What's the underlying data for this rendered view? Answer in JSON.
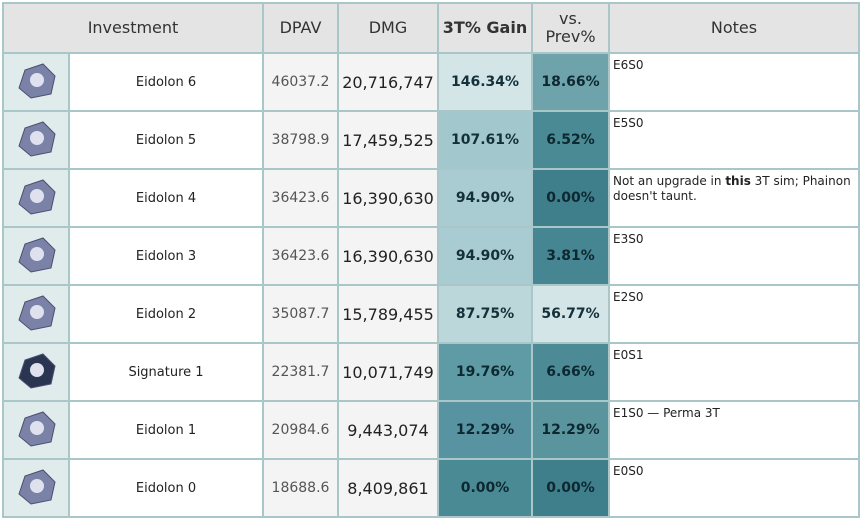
{
  "table": {
    "header": [
      "Investment",
      "DPAV",
      "DMG",
      "3T% Gain",
      "vs.\nPrev%",
      "Notes"
    ],
    "rows": [
      {
        "investment": "Eidolon 6",
        "dpav": "46037.2",
        "dmg": "20,716,747",
        "gain": "146.34%",
        "prev": "18.66%",
        "notes": [
          "E6S0"
        ]
      },
      {
        "investment": "Eidolon 5",
        "dpav": "38798.9",
        "dmg": "17,459,525",
        "gain": "107.61%",
        "prev": "6.52%",
        "notes": [
          "E5S0"
        ]
      },
      {
        "investment": "Eidolon 4",
        "dpav": "36423.6",
        "dmg": "16,390,630",
        "gain": "94.90%",
        "prev": "0.00%",
        "notes": [
          "Not an upgrade in ",
          "this",
          " 3T sim; Phainon doesn't taunt."
        ]
      },
      {
        "investment": "Eidolon 3",
        "dpav": "36423.6",
        "dmg": "16,390,630",
        "gain": "94.90%",
        "prev": "3.81%",
        "notes": [
          "E3S0"
        ]
      },
      {
        "investment": "Eidolon 2",
        "dpav": "35087.7",
        "dmg": "15,789,455",
        "gain": "87.75%",
        "prev": "56.77%",
        "notes": [
          "E2S0"
        ]
      },
      {
        "investment": "Signature 1",
        "dpav": "22381.7",
        "dmg": "10,071,749",
        "gain": "19.76%",
        "prev": "6.66%",
        "notes": [
          "E0S1"
        ]
      },
      {
        "investment": "Eidolon 1",
        "dpav": "20984.6",
        "dmg": "9,443,074",
        "gain": "12.29%",
        "prev": "12.29%",
        "notes": [
          "E1S0 — Perma 3T"
        ]
      },
      {
        "investment": "Eidolon 0",
        "dpav": "18688.6",
        "dmg": "8,409,861",
        "gain": "0.00%",
        "prev": "0.00%",
        "notes": [
          "E0S0"
        ]
      }
    ]
  }
}
